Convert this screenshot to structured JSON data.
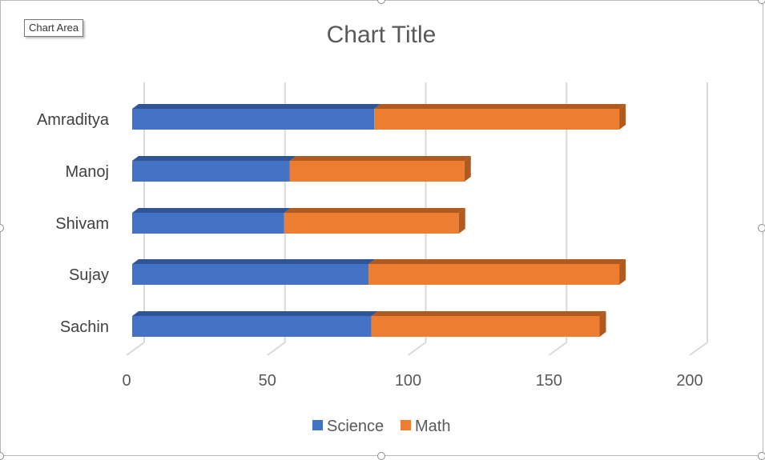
{
  "tooltip": {
    "label": "Chart Area"
  },
  "colors": {
    "science": "#4472C4",
    "science_top": "#2F5597",
    "math": "#ED7D31",
    "math_side": "#B05A1F",
    "grid": "#D9D9D9",
    "text": "#595959",
    "label_text": "#404040"
  },
  "chart_data": {
    "type": "bar",
    "orientation": "horizontal",
    "stacked": true,
    "three_d": true,
    "title": "Chart Title",
    "categories": [
      "Amraditya",
      "Manoj",
      "Shivam",
      "Sujay",
      "Sachin"
    ],
    "series": [
      {
        "name": "Science",
        "values": [
          86,
          56,
          54,
          84,
          85
        ]
      },
      {
        "name": "Math",
        "values": [
          87,
          62,
          62,
          89,
          81
        ]
      }
    ],
    "xlim": [
      0,
      200
    ],
    "xticks": [
      "0",
      "50",
      "100",
      "150",
      "200"
    ],
    "grid": true,
    "legend": "bottom"
  }
}
